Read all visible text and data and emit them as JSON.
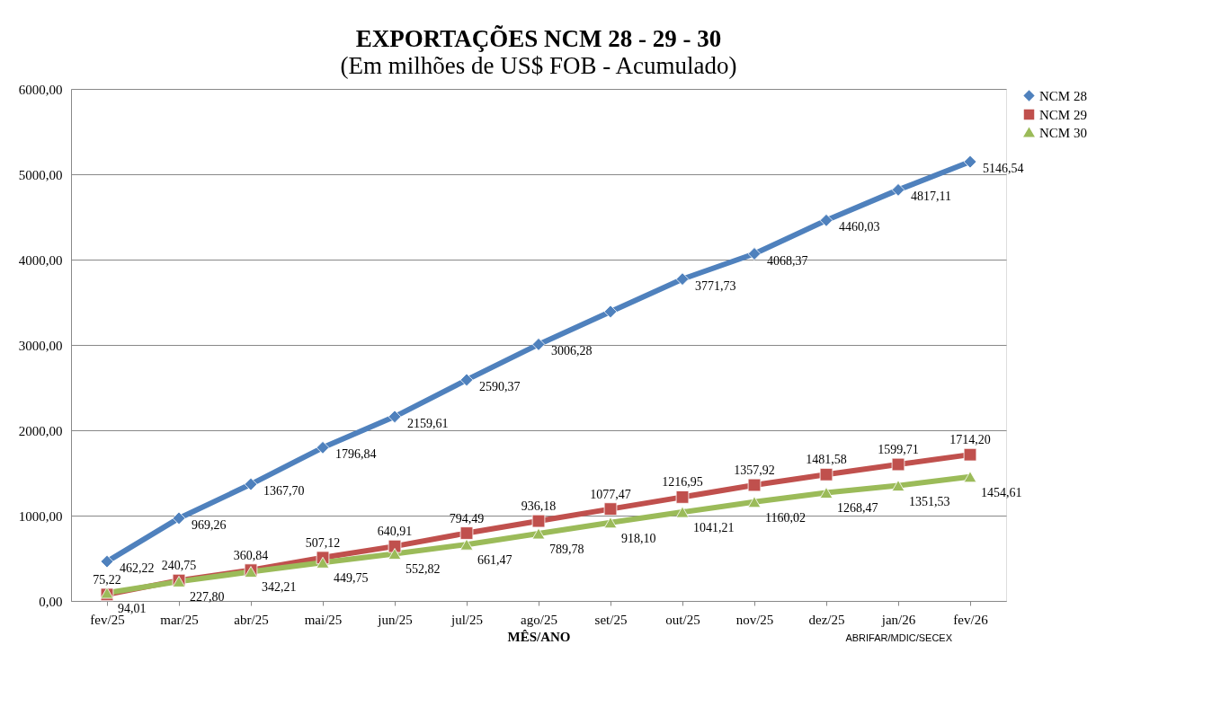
{
  "chart_data": {
    "type": "line",
    "title": "EXPORTAÇÕES NCM 28 - 29 - 30",
    "subtitle": "(Em milhões de US$ FOB - Acumulado)",
    "xlabel": "MÊS/ANO",
    "categories": [
      "fev/25",
      "mar/25",
      "abr/25",
      "mai/25",
      "jun/25",
      "jul/25",
      "ago/25",
      "set/25",
      "out/25",
      "nov/25",
      "dez/25",
      "jan/26",
      "fev/26"
    ],
    "series": [
      {
        "name": "NCM 28",
        "color": "#4f81bd",
        "marker": "diamond",
        "values": [
          462.22,
          969.26,
          1367.7,
          1796.84,
          2159.61,
          2590.37,
          3006.28,
          3390,
          3771.73,
          4068.37,
          4460.03,
          4817.11,
          5146.54
        ],
        "value_labels": [
          "462,22",
          "969,26",
          "1367,70",
          "1796,84",
          "2159,61",
          "2590,37",
          "3006,28",
          null,
          "3771,73",
          "4068,37",
          "4460,03",
          "4817,11",
          "5146,54"
        ]
      },
      {
        "name": "NCM 29",
        "color": "#c0504d",
        "marker": "square",
        "values": [
          75.22,
          240.75,
          360.84,
          507.12,
          640.91,
          794.49,
          936.18,
          1077.47,
          1216.95,
          1357.92,
          1481.58,
          1599.71,
          1714.2
        ],
        "value_labels": [
          "75,22",
          "240,75",
          "360,84",
          "507,12",
          "640,91",
          "794,49",
          "936,18",
          "1077,47",
          "1216,95",
          "1357,92",
          "1481,58",
          "1599,71",
          "1714,20"
        ]
      },
      {
        "name": "NCM 30",
        "color": "#9bbb59",
        "marker": "triangle",
        "values": [
          94.01,
          227.8,
          342.21,
          449.75,
          552.82,
          661.47,
          789.78,
          918.1,
          1041.21,
          1160.02,
          1268.47,
          1351.53,
          1454.61
        ],
        "value_labels": [
          "94,01",
          "227,80",
          "342,21",
          "449,75",
          "552,82",
          "661,47",
          "789,78",
          "918,10",
          "1041,21",
          "1160,02",
          "1268,47",
          "1351,53",
          "1454,61"
        ]
      }
    ],
    "ylim": [
      0,
      6000
    ],
    "yticks": [
      {
        "value": 0,
        "label": "0,00"
      },
      {
        "value": 1000,
        "label": "1000,00"
      },
      {
        "value": 2000,
        "label": "2000,00"
      },
      {
        "value": 3000,
        "label": "3000,00"
      },
      {
        "value": 4000,
        "label": "4000,00"
      },
      {
        "value": 5000,
        "label": "5000,00"
      },
      {
        "value": 6000,
        "label": "6000,00"
      }
    ],
    "grid": "y",
    "legend": "right",
    "line_style": "solid",
    "annotations": [
      "ABRIFAR/MDIC/SECEX"
    ]
  }
}
